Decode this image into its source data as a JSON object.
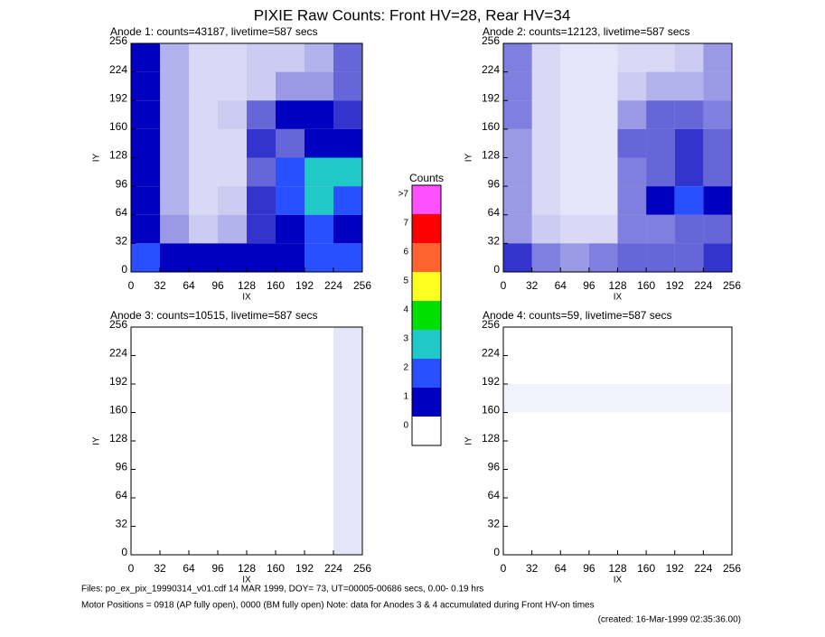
{
  "title": "PIXIE Raw Counts:  Front HV=28, Rear HV=34",
  "chart_data": [
    {
      "type": "heatmap",
      "title": "Anode 1: counts=43187, livetime=587 secs",
      "xlabel": "IX",
      "ylabel": "IY",
      "xlim": [
        0,
        256
      ],
      "ylim": [
        0,
        256
      ],
      "xticks": [
        0,
        32,
        64,
        96,
        128,
        160,
        192,
        224,
        256
      ],
      "yticks": [
        0,
        32,
        64,
        96,
        128,
        160,
        192,
        224,
        256
      ],
      "z": [
        [
          1.0,
          0.3,
          0.15,
          0.15,
          0.2,
          0.2,
          0.3,
          0.6
        ],
        [
          1.0,
          0.3,
          0.15,
          0.15,
          0.2,
          0.4,
          0.4,
          0.6
        ],
        [
          1.2,
          0.3,
          0.15,
          0.2,
          0.6,
          1.0,
          1.2,
          0.8
        ],
        [
          1.0,
          0.3,
          0.15,
          0.15,
          0.8,
          0.6,
          1.2,
          1.0
        ],
        [
          1.0,
          0.3,
          0.15,
          0.15,
          0.6,
          1.5,
          2.5,
          2.5
        ],
        [
          1.0,
          0.3,
          0.15,
          0.2,
          0.8,
          1.5,
          3.0,
          2.0
        ],
        [
          1.0,
          0.4,
          0.2,
          0.3,
          0.8,
          1.0,
          1.5,
          1.2
        ],
        [
          1.5,
          1.2,
          1.0,
          1.2,
          1.2,
          1.2,
          1.5,
          1.5
        ]
      ]
    },
    {
      "type": "heatmap",
      "title": "Anode 2: counts=12123, livetime=587 secs",
      "xlabel": "IX",
      "ylabel": "IY",
      "xlim": [
        0,
        256
      ],
      "ylim": [
        0,
        256
      ],
      "xticks": [
        0,
        32,
        64,
        96,
        128,
        160,
        192,
        224,
        256
      ],
      "yticks": [
        0,
        32,
        64,
        96,
        128,
        160,
        192,
        224,
        256
      ],
      "z": [
        [
          0.5,
          0.15,
          0.1,
          0.1,
          0.15,
          0.15,
          0.2,
          0.4
        ],
        [
          0.5,
          0.15,
          0.1,
          0.1,
          0.2,
          0.3,
          0.3,
          0.4
        ],
        [
          0.5,
          0.15,
          0.1,
          0.1,
          0.4,
          0.6,
          0.6,
          0.5
        ],
        [
          0.4,
          0.15,
          0.1,
          0.1,
          0.6,
          0.6,
          0.8,
          0.6
        ],
        [
          0.4,
          0.15,
          0.1,
          0.1,
          0.5,
          0.6,
          0.8,
          0.6
        ],
        [
          0.4,
          0.15,
          0.1,
          0.1,
          0.5,
          1.2,
          1.5,
          1.2
        ],
        [
          0.4,
          0.2,
          0.15,
          0.15,
          0.5,
          0.5,
          0.6,
          0.6
        ],
        [
          0.8,
          0.5,
          0.4,
          0.5,
          0.6,
          0.6,
          0.6,
          0.8
        ]
      ]
    },
    {
      "type": "heatmap",
      "title": "Anode 3: counts=10515, livetime=587 secs",
      "xlabel": "IX",
      "ylabel": "IY",
      "xlim": [
        0,
        256
      ],
      "ylim": [
        0,
        256
      ],
      "xticks": [
        0,
        32,
        64,
        96,
        128,
        160,
        192,
        224,
        256
      ],
      "yticks": [
        0,
        32,
        64,
        96,
        128,
        160,
        192,
        224,
        256
      ],
      "z": [
        [
          0,
          0,
          0,
          0,
          0,
          0,
          0,
          0.1
        ],
        [
          0,
          0,
          0,
          0,
          0,
          0,
          0,
          0.1
        ],
        [
          0,
          0,
          0,
          0,
          0,
          0,
          0,
          0.1
        ],
        [
          0,
          0,
          0,
          0,
          0,
          0,
          0,
          0.1
        ],
        [
          0,
          0,
          0,
          0,
          0,
          0,
          0,
          0.1
        ],
        [
          0,
          0,
          0,
          0,
          0,
          0,
          0,
          0.1
        ],
        [
          0,
          0,
          0,
          0,
          0,
          0,
          0,
          0.1
        ],
        [
          0,
          0,
          0,
          0,
          0,
          0,
          0,
          0.1
        ]
      ]
    },
    {
      "type": "heatmap",
      "title": "Anode 4: counts=59, livetime=587 secs",
      "xlabel": "IX",
      "ylabel": "IY",
      "xlim": [
        0,
        256
      ],
      "ylim": [
        0,
        256
      ],
      "xticks": [
        0,
        32,
        64,
        96,
        128,
        160,
        192,
        224,
        256
      ],
      "yticks": [
        0,
        32,
        64,
        96,
        128,
        160,
        192,
        224,
        256
      ],
      "z": [
        [
          0,
          0,
          0,
          0,
          0,
          0,
          0,
          0
        ],
        [
          0,
          0,
          0,
          0,
          0,
          0,
          0,
          0
        ],
        [
          0.05,
          0.05,
          0.05,
          0.05,
          0.05,
          0.05,
          0.05,
          0.05
        ],
        [
          0,
          0,
          0,
          0,
          0,
          0,
          0,
          0
        ],
        [
          0,
          0,
          0,
          0,
          0,
          0,
          0,
          0
        ],
        [
          0,
          0,
          0,
          0,
          0,
          0,
          0,
          0
        ],
        [
          0,
          0,
          0,
          0,
          0,
          0,
          0,
          0
        ],
        [
          0,
          0,
          0,
          0,
          0,
          0,
          0,
          0
        ]
      ]
    }
  ],
  "colorbar": {
    "label": "Counts",
    "levels": [
      0,
      1,
      2,
      3,
      4,
      5,
      6,
      7,
      {
        "value": 8,
        "label": ">7"
      }
    ],
    "colors": [
      "#ffffff",
      "#0000c0",
      "#2850ff",
      "#20c8c8",
      "#00e000",
      "#ffff20",
      "#ff6430",
      "#ff0000",
      "#ff50ff"
    ]
  },
  "footer": [
    "Files: po_ex_pix_19990314_v01.cdf    14 MAR 1999, DOY= 73, UT=00005-00686 secs,  0.00- 0.19 hrs",
    "Motor Positions = 0918 (AP fully open), 0000 (BM fully open)    Note: data for Anodes 3 & 4 accumulated during Front HV-on times",
    "(created: 16-Mar-1999 02:35:36.00)"
  ]
}
